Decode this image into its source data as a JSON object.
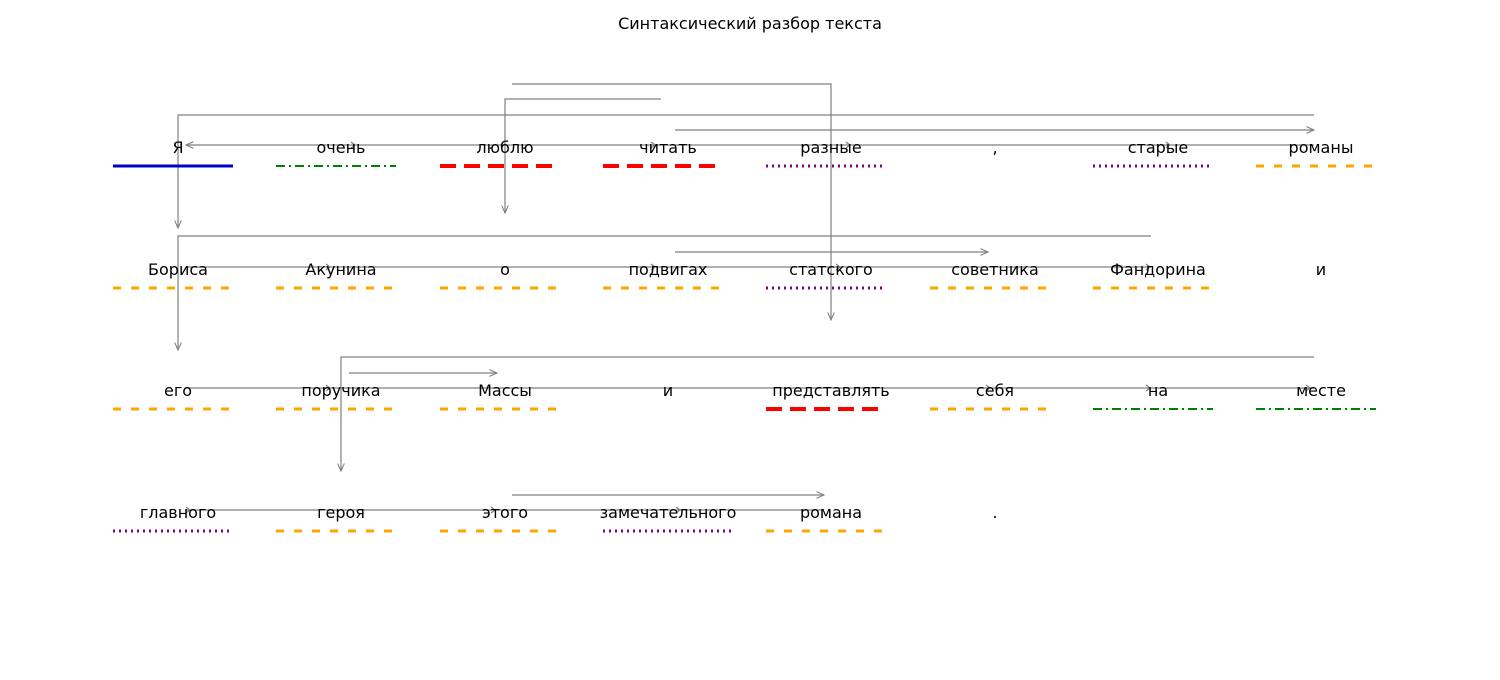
{
  "title": "Синтаксический разбор текста",
  "underline_styles": {
    "subject": {
      "color": "#0000cc",
      "dash": "solid"
    },
    "predicate": {
      "color": "#ff0000",
      "dash": "long-dash"
    },
    "attribute": {
      "color": "#800080",
      "dash": "dotted"
    },
    "object": {
      "color": "#ffa500",
      "dash": "dashed"
    },
    "adverbial": {
      "color": "#008000",
      "dash": "dash-dot"
    }
  },
  "rows": [
    [
      {
        "text": "Я",
        "role": "subject"
      },
      {
        "text": "очень",
        "role": "adverbial"
      },
      {
        "text": "люблю",
        "role": "predicate"
      },
      {
        "text": "читать",
        "role": "predicate"
      },
      {
        "text": "разные",
        "role": "attribute"
      },
      {
        "text": ",",
        "role": null
      },
      {
        "text": "старые",
        "role": "attribute"
      },
      {
        "text": "романы",
        "role": "object"
      }
    ],
    [
      {
        "text": "Бориса",
        "role": "object"
      },
      {
        "text": "Акунина",
        "role": "object"
      },
      {
        "text": "о",
        "role": "object"
      },
      {
        "text": "подвигах",
        "role": "object"
      },
      {
        "text": "статского",
        "role": "attribute"
      },
      {
        "text": "советника",
        "role": "object"
      },
      {
        "text": "Фандорина",
        "role": "object"
      },
      {
        "text": "и",
        "role": null
      }
    ],
    [
      {
        "text": "его",
        "role": "object"
      },
      {
        "text": "поручика",
        "role": "object"
      },
      {
        "text": "Массы",
        "role": "object"
      },
      {
        "text": "и",
        "role": null
      },
      {
        "text": "представлять",
        "role": "predicate"
      },
      {
        "text": "себя",
        "role": "object"
      },
      {
        "text": "на",
        "role": "adverbial"
      },
      {
        "text": "месте",
        "role": "adverbial"
      }
    ],
    [
      {
        "text": "главного",
        "role": "attribute"
      },
      {
        "text": "героя",
        "role": "object"
      },
      {
        "text": "этого",
        "role": "object"
      },
      {
        "text": "замечательного",
        "role": "attribute"
      },
      {
        "text": "романа",
        "role": "object"
      },
      {
        "text": ".",
        "role": null
      }
    ]
  ]
}
